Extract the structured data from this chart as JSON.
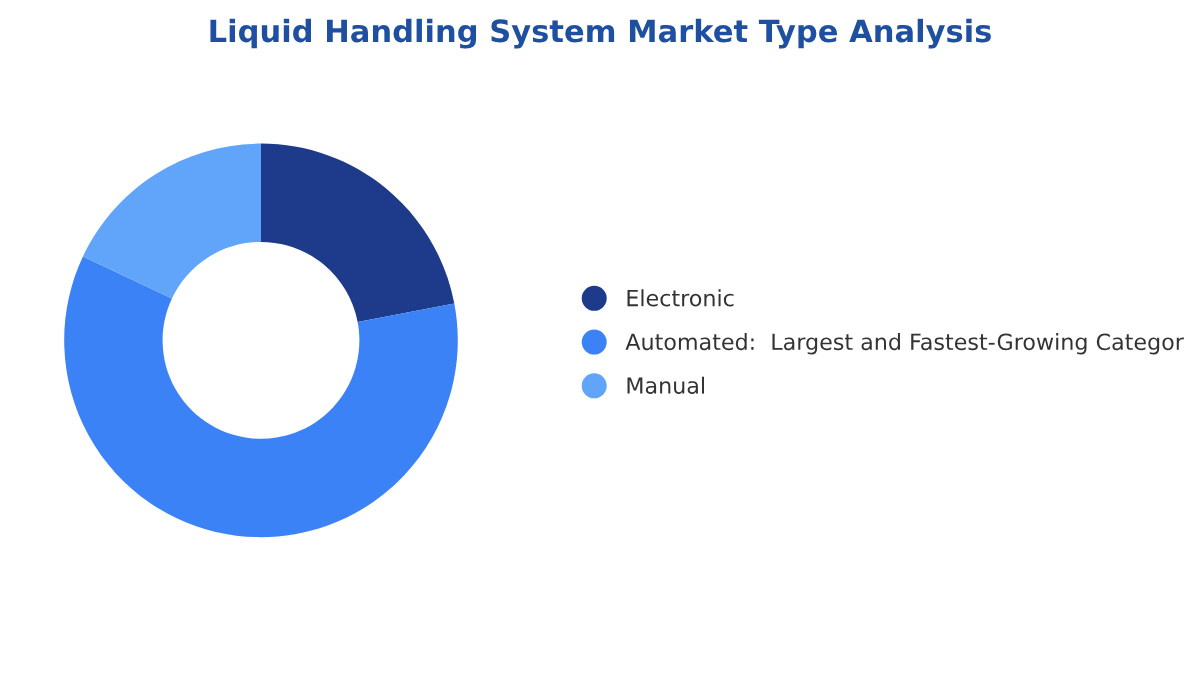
{
  "chart_data": {
    "type": "donut",
    "title": "Liquid Handling System Market Type Analysis",
    "categories": [
      "Electronic",
      "Automated:  Largest and Fastest-Growing Categor",
      "Manual"
    ],
    "values": [
      22,
      60,
      18
    ],
    "colors": [
      "#1e3a8a",
      "#3b82f6",
      "#60a5fa"
    ],
    "legend": "right"
  }
}
